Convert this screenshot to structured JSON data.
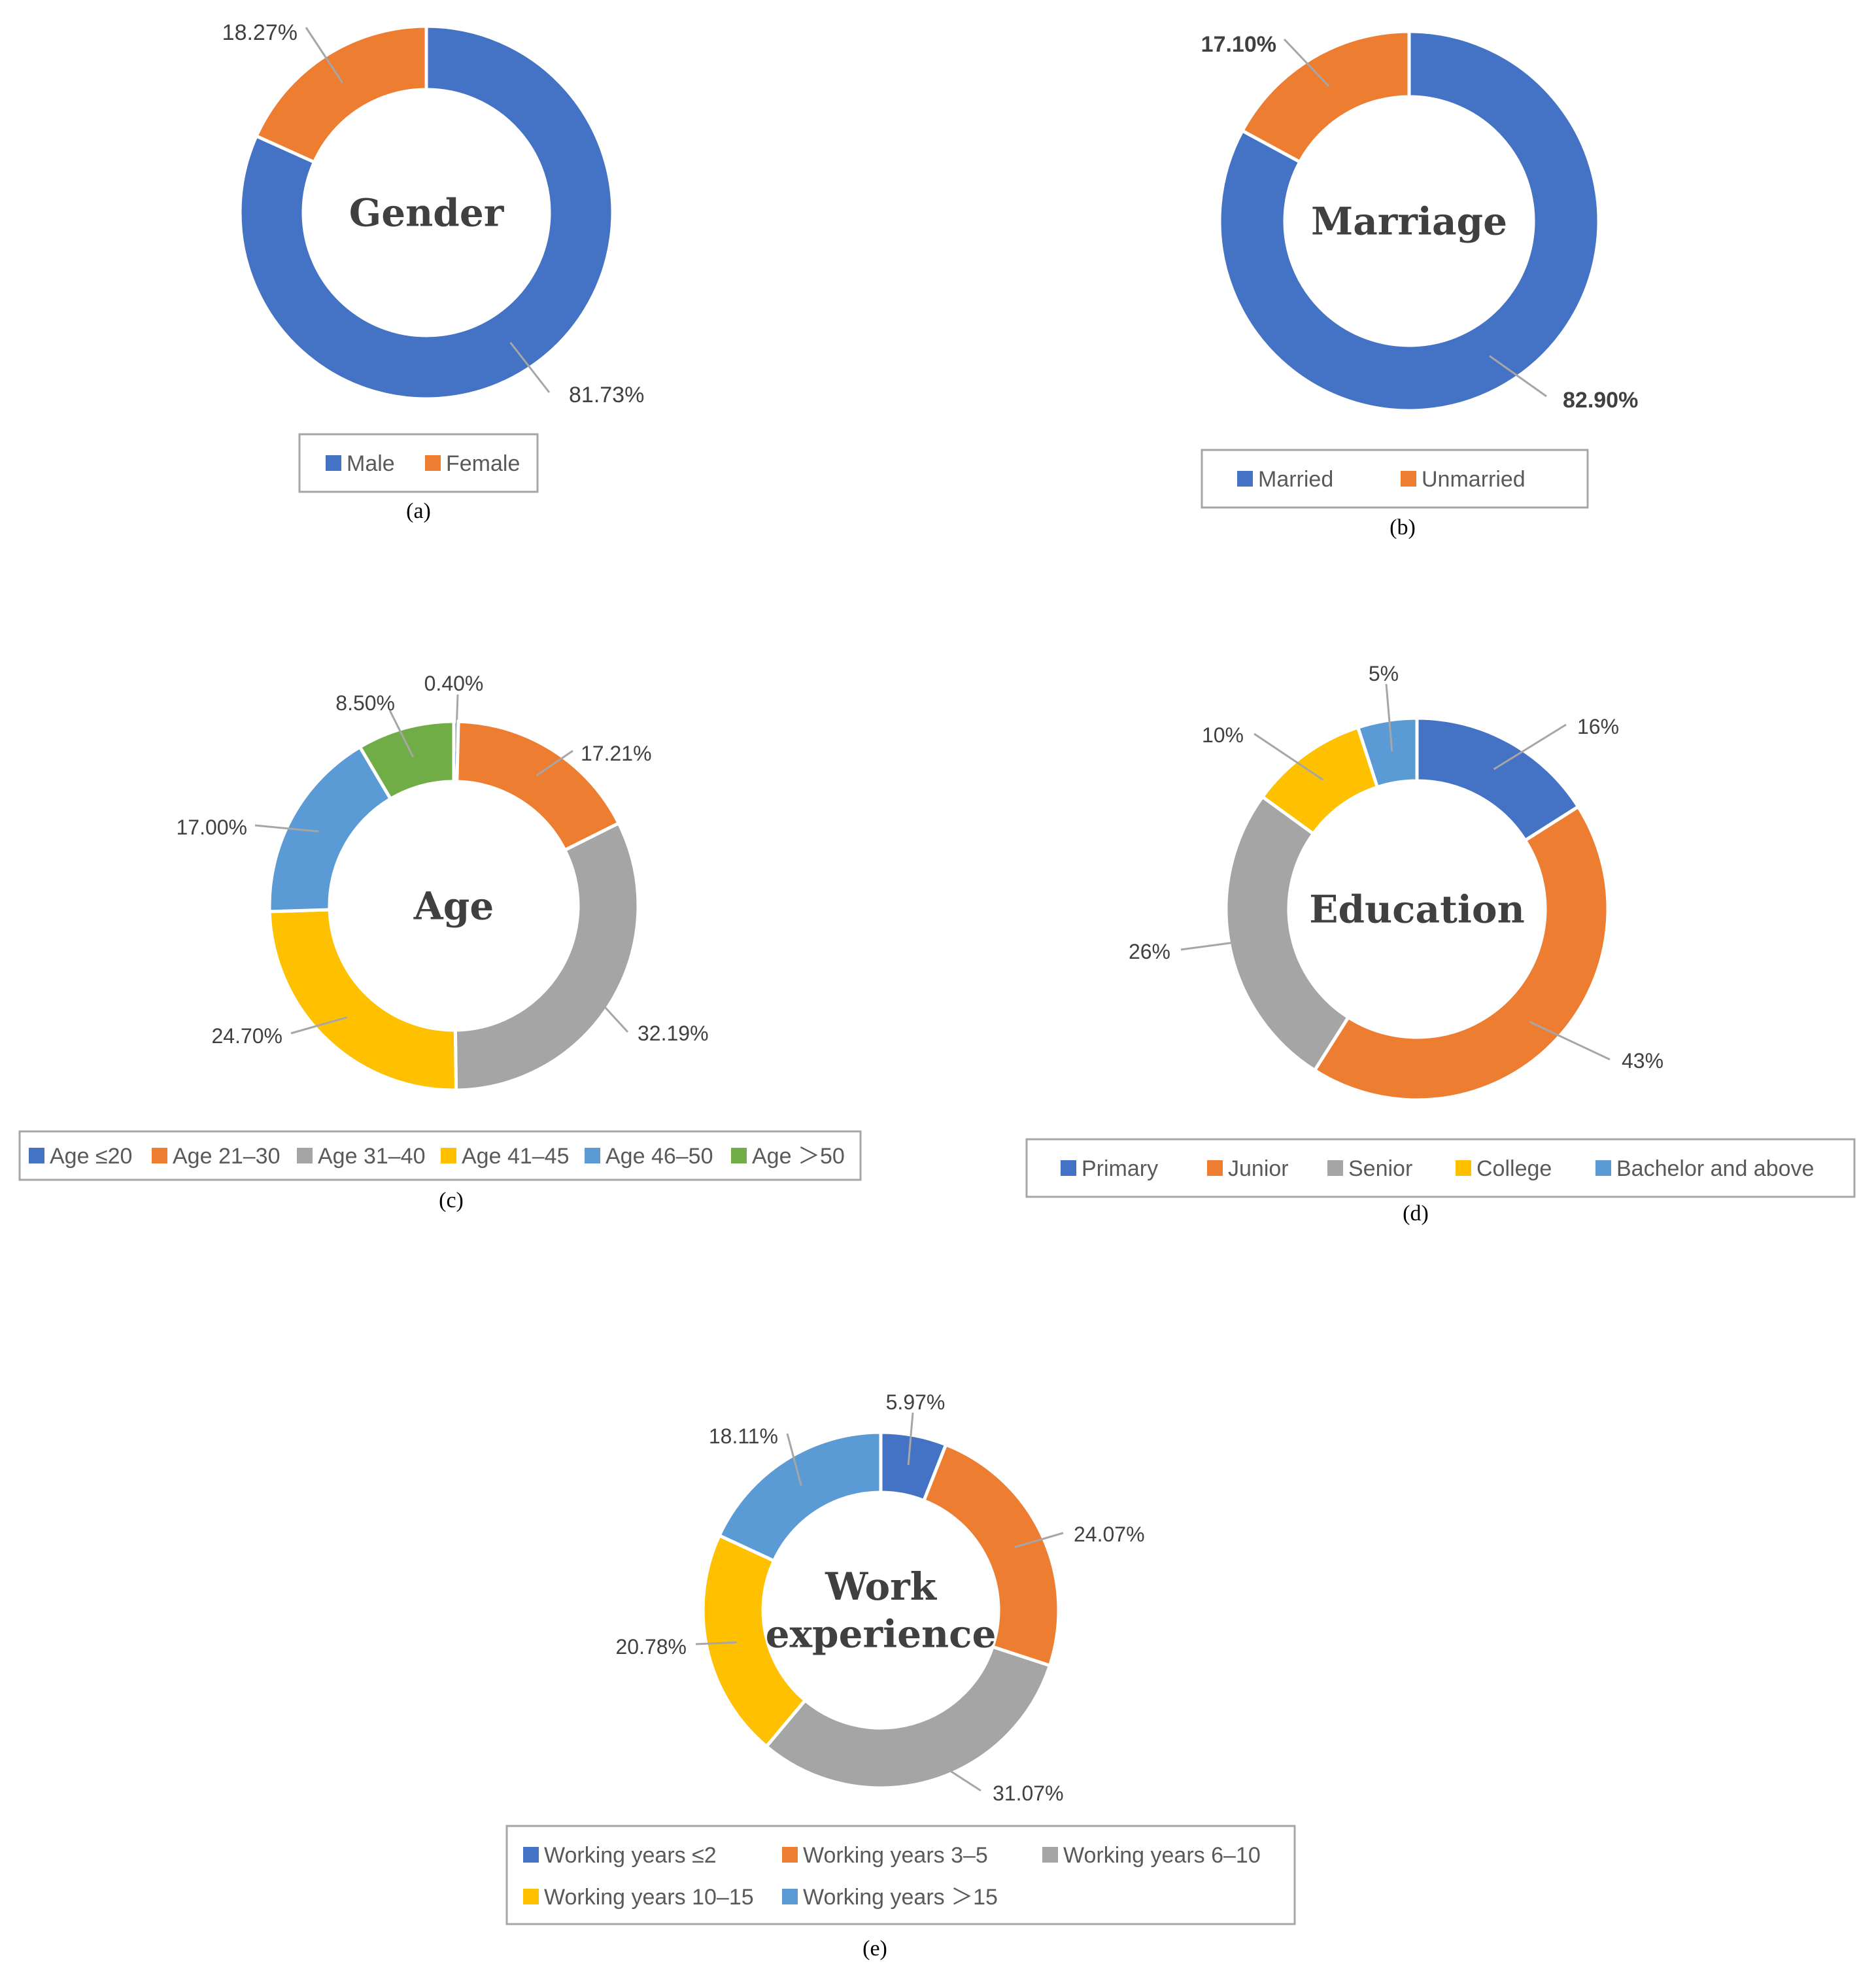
{
  "chart_data": [
    {
      "type": "donut",
      "title": "Gender",
      "caption": "(a)",
      "series": [
        {
          "name": "Male",
          "value": 81.73,
          "label": "81.73%",
          "color": "#4472C4"
        },
        {
          "name": "Female",
          "value": 18.27,
          "label": "18.27%",
          "color": "#ED7D31"
        }
      ],
      "legend": {
        "position": "bottom"
      }
    },
    {
      "type": "donut",
      "title": "Marriage",
      "caption": "(b)",
      "series": [
        {
          "name": "Married",
          "value": 82.9,
          "label": "82.90%",
          "color": "#4472C4"
        },
        {
          "name": "Unmarried",
          "value": 17.1,
          "label": "17.10%",
          "color": "#ED7D31"
        }
      ],
      "legend": {
        "position": "bottom"
      }
    },
    {
      "type": "donut",
      "title": "Age",
      "caption": "(c)",
      "series": [
        {
          "name": "Age ≤20",
          "value": 0.4,
          "label": "0.40%",
          "color": "#4472C4"
        },
        {
          "name": "Age 21–30",
          "value": 17.21,
          "label": "17.21%",
          "color": "#ED7D31"
        },
        {
          "name": "Age 31–40",
          "value": 32.19,
          "label": "32.19%",
          "color": "#A5A5A5"
        },
        {
          "name": "Age 41–45",
          "value": 24.7,
          "label": "24.70%",
          "color": "#FFC000"
        },
        {
          "name": "Age 46–50",
          "value": 17.0,
          "label": "17.00%",
          "color": "#5B9BD5"
        },
        {
          "name": "Age ＞50",
          "value": 8.5,
          "label": "8.50%",
          "color": "#70AD47"
        }
      ],
      "legend": {
        "position": "bottom"
      }
    },
    {
      "type": "donut",
      "title": "Education",
      "caption": "(d)",
      "series": [
        {
          "name": "Primary",
          "value": 16,
          "label": "16%",
          "color": "#4472C4"
        },
        {
          "name": "Junior",
          "value": 43,
          "label": "43%",
          "color": "#ED7D31"
        },
        {
          "name": "Senior",
          "value": 26,
          "label": "26%",
          "color": "#A5A5A5"
        },
        {
          "name": "College",
          "value": 10,
          "label": "10%",
          "color": "#FFC000"
        },
        {
          "name": "Bachelor and above",
          "value": 5,
          "label": "5%",
          "color": "#5B9BD5"
        }
      ],
      "legend": {
        "position": "bottom"
      }
    },
    {
      "type": "donut",
      "title": "Work experience",
      "title_lines": [
        "Work",
        "experience"
      ],
      "caption": "(e)",
      "series": [
        {
          "name": "Working years ≤2",
          "value": 5.97,
          "label": "5.97%",
          "color": "#4472C4"
        },
        {
          "name": "Working years 3–5",
          "value": 24.07,
          "label": "24.07%",
          "color": "#ED7D31"
        },
        {
          "name": "Working years 6–10",
          "value": 31.07,
          "label": "31.07%",
          "color": "#A5A5A5"
        },
        {
          "name": "Working years 10–15",
          "value": 20.78,
          "label": "20.78%",
          "color": "#FFC000"
        },
        {
          "name": "Working years ＞15",
          "value": 18.11,
          "label": "18.11%",
          "color": "#5B9BD5"
        }
      ],
      "legend": {
        "position": "bottom"
      }
    }
  ]
}
